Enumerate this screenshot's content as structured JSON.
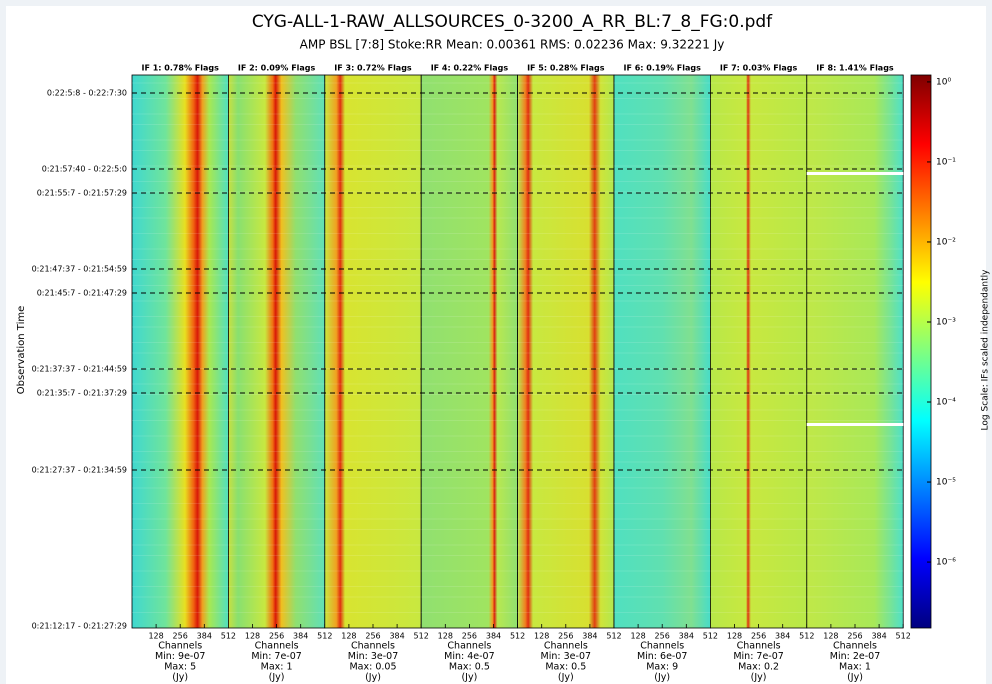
{
  "chart_data": {
    "type": "heatmap",
    "title": "CYG-ALL-1-RAW_ALLSOURCES_0-3200_A_RR_BL:7_8_FG:0.pdf",
    "subtitle": "AMP BSL [7:8] Stoke:RR Mean: 0.00361 RMS: 0.02236 Max: 9.32221 Jy",
    "y_label": "Observation Time",
    "colorbar_label": "Log Scale: IFs scaled independantly",
    "y_categories": [
      "0:22:5:8 - 0:22:7:30",
      "0:21:57:40 - 0:22:5:0",
      "0:21:55:7 - 0:21:57:29",
      "0:21:47:37 - 0:21:54:59",
      "0:21:45:7 - 0:21:47:29",
      "0:21:37:37 - 0:21:44:59",
      "0:21:35:7 - 0:21:37:29",
      "0:21:27:37 - 0:21:34:59",
      "0:21:12:17 - 0:21:27:29"
    ],
    "xlim": [
      0,
      512
    ],
    "xticks": [
      128,
      256,
      384,
      512
    ],
    "log_scale": true,
    "clim": [
      1.5e-07,
      1.22
    ],
    "cticks": [
      {
        "value": 1,
        "label": "10⁰"
      },
      {
        "value": 0.1,
        "label": "10⁻¹"
      },
      {
        "value": 0.01,
        "label": "10⁻²"
      },
      {
        "value": 0.001,
        "label": "10⁻³"
      },
      {
        "value": 0.0001,
        "label": "10⁻⁴"
      },
      {
        "value": 1e-05,
        "label": "10⁻⁵"
      },
      {
        "value": 1e-06,
        "label": "10⁻⁶"
      }
    ],
    "panels": [
      {
        "title": "IF 1: 0.78% Flags",
        "footer": [
          "Channels",
          "Min: 9e-07",
          "Max: 5",
          "(Jy)"
        ]
      },
      {
        "title": "IF 2: 0.09% Flags",
        "footer": [
          "Channels",
          "Min: 7e-07",
          "Max: 1",
          "(Jy)"
        ]
      },
      {
        "title": "IF 3: 0.72% Flags",
        "footer": [
          "Channels",
          "Min: 3e-07",
          "Max: 0.05",
          "(Jy)"
        ]
      },
      {
        "title": "IF 4: 0.22% Flags",
        "footer": [
          "Channels",
          "Min: 4e-07",
          "Max: 0.5",
          "(Jy)"
        ]
      },
      {
        "title": "IF 5: 0.28% Flags",
        "footer": [
          "Channels",
          "Min: 3e-07",
          "Max: 0.5",
          "(Jy)"
        ]
      },
      {
        "title": "IF 6: 0.19% Flags",
        "footer": [
          "Channels",
          "Min: 6e-07",
          "Max: 9",
          "(Jy)"
        ]
      },
      {
        "title": "IF 7: 0.03% Flags",
        "footer": [
          "Channels",
          "Min: 7e-07",
          "Max: 0.2",
          "(Jy)"
        ]
      },
      {
        "title": "IF 8: 1.41% Flags",
        "footer": [
          "Channels",
          "Min: 2e-07",
          "Max: 1",
          "(Jy)"
        ]
      }
    ]
  }
}
